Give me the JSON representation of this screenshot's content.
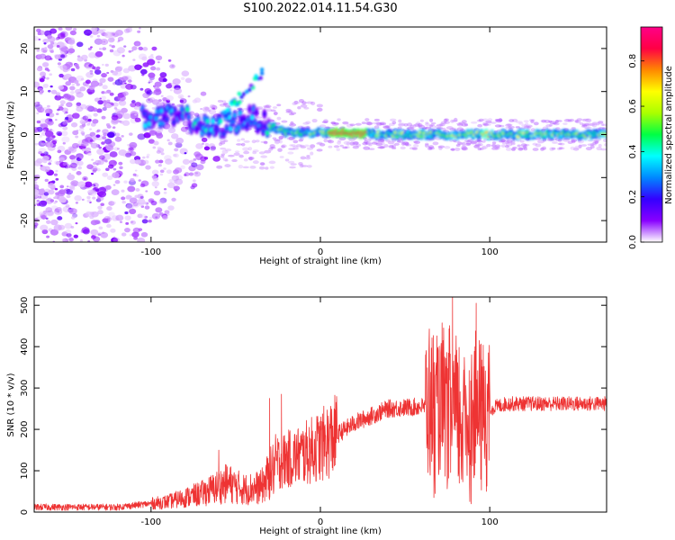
{
  "title": "S100.2022.014.11.54.G30",
  "chart_data": [
    {
      "type": "heatmap",
      "xlabel": "Height of straight line (km)",
      "ylabel": "Frequency (Hz)",
      "xlim": [
        -169,
        169
      ],
      "ylim": [
        -25,
        25
      ],
      "xticks": [
        -100,
        0,
        100
      ],
      "yticks": [
        -20,
        -10,
        0,
        10,
        20
      ],
      "colorbar": {
        "label": "Normalized spectral amplitude",
        "range": [
          0,
          0.95
        ],
        "ticks": [
          0.0,
          0.2,
          0.4,
          0.6,
          0.8
        ],
        "tick_labels": [
          "0.0",
          "0.2",
          "0.4",
          "0.6",
          "0.8"
        ],
        "colormap": [
          "#ffffff",
          "#8800ff",
          "#3300ff",
          "#0088ff",
          "#00ffff",
          "#00ff44",
          "#aaff00",
          "#ffff00",
          "#ff8800",
          "#ff0044",
          "#ff0088"
        ]
      },
      "ridge": [
        {
          "x": -100,
          "freq": 4
        },
        {
          "x": -80,
          "freq": 4
        },
        {
          "x": -65,
          "freq": 1
        },
        {
          "x": -50,
          "freq": 3
        },
        {
          "x": -40,
          "freq": 4
        },
        {
          "x": -30,
          "freq": 2
        },
        {
          "x": -20,
          "freq": 0.5
        },
        {
          "x": 0,
          "freq": 0.5
        },
        {
          "x": 50,
          "freq": 0
        },
        {
          "x": 100,
          "freq": 0
        },
        {
          "x": 169,
          "freq": 0
        }
      ]
    },
    {
      "type": "line",
      "xlabel": "Height of straight line (km)",
      "ylabel": "SNR (10 * v/v)",
      "xlim": [
        -169,
        169
      ],
      "ylim": [
        0,
        520
      ],
      "xticks": [
        -100,
        0,
        100
      ],
      "yticks": [
        0,
        100,
        200,
        300,
        400,
        500
      ],
      "color": "#ee3333",
      "envelope": [
        {
          "x": -169,
          "y": 12
        },
        {
          "x": -120,
          "y": 12
        },
        {
          "x": -90,
          "y": 25
        },
        {
          "x": -70,
          "y": 45
        },
        {
          "x": -55,
          "y": 70
        },
        {
          "x": -45,
          "y": 55
        },
        {
          "x": -35,
          "y": 60
        },
        {
          "x": -25,
          "y": 120
        },
        {
          "x": -10,
          "y": 140
        },
        {
          "x": 0,
          "y": 160
        },
        {
          "x": 20,
          "y": 215
        },
        {
          "x": 40,
          "y": 250
        },
        {
          "x": 60,
          "y": 255
        },
        {
          "x": 70,
          "y": 250
        },
        {
          "x": 85,
          "y": 230
        },
        {
          "x": 100,
          "y": 250
        },
        {
          "x": 110,
          "y": 262
        },
        {
          "x": 169,
          "y": 262
        }
      ],
      "peaks": [
        {
          "x": -60,
          "y": 150
        },
        {
          "x": -30,
          "y": 275
        },
        {
          "x": -23,
          "y": 285
        },
        {
          "x": 78,
          "y": 520
        },
        {
          "x": 92,
          "y": 505
        },
        {
          "x": 67,
          "y": 360
        }
      ],
      "troughs": [
        {
          "x": 67,
          "y": 35
        },
        {
          "x": 82,
          "y": 70
        },
        {
          "x": 89,
          "y": 20
        },
        {
          "x": 98,
          "y": 50
        }
      ]
    }
  ]
}
